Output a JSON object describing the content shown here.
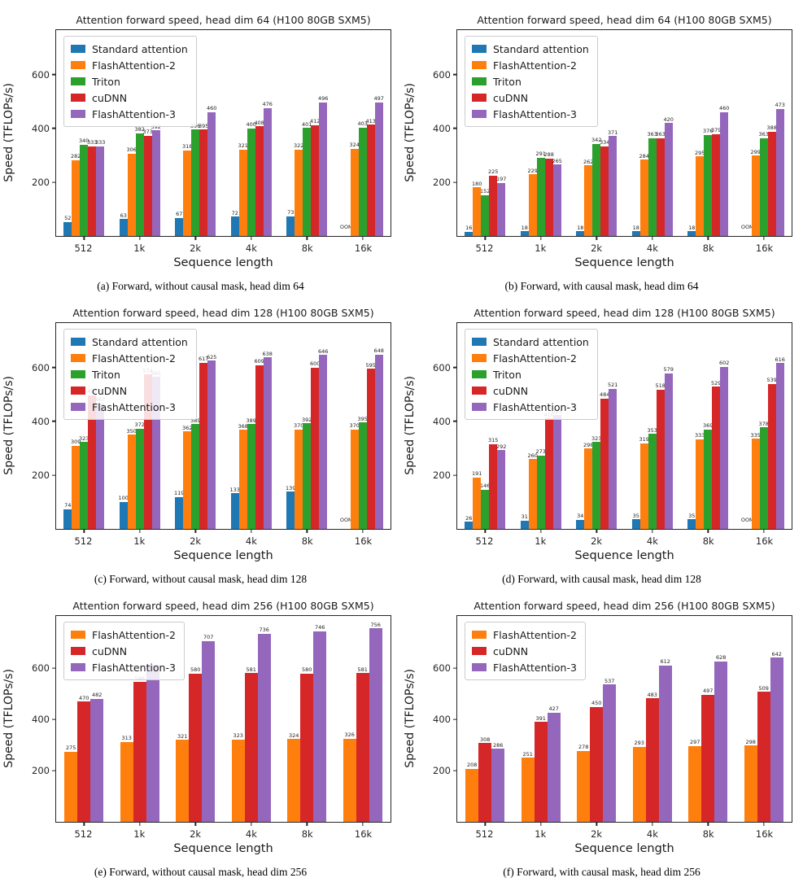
{
  "page": {
    "background": "#ffffff"
  },
  "palette": {
    "standard_attention": "#1f77b4",
    "flashattention2": "#ff7f0e",
    "triton": "#2ca02c",
    "cudnn": "#d62728",
    "flashattention3": "#9467bd"
  },
  "chart_data": [
    {
      "type": "bar",
      "title": "Attention forward speed, head dim 64 (H100 80GB SXM5)",
      "caption": "(a) Forward, without causal mask, head dim 64",
      "xlabel": "Sequence length",
      "ylabel": "Speed (TFLOPs/s)",
      "categories": [
        "512",
        "1k",
        "2k",
        "4k",
        "8k",
        "16k"
      ],
      "yticks": [
        200,
        400,
        600
      ],
      "ylim": [
        0,
        765
      ],
      "grid": false,
      "legend_position": "upper left",
      "series": [
        {
          "name": "Standard attention",
          "color": "#1f77b4",
          "values": [
            52,
            63,
            67,
            72,
            73,
            null
          ],
          "labels": [
            "52",
            "63",
            "67",
            "72",
            "73",
            "OOM"
          ]
        },
        {
          "name": "FlashAttention-2",
          "color": "#ff7f0e",
          "values": [
            282,
            306,
            318,
            321,
            322,
            324
          ],
          "labels": [
            "282",
            "306",
            "318",
            "321",
            "322",
            "324"
          ]
        },
        {
          "name": "Triton",
          "color": "#2ca02c",
          "values": [
            340,
            382,
            396,
            400,
            401,
            403
          ],
          "labels": [
            "340",
            "382",
            "396",
            "400",
            "401",
            "403"
          ]
        },
        {
          "name": "cuDNN",
          "color": "#d62728",
          "values": [
            333,
            373,
            395,
            408,
            412,
            413
          ],
          "labels": [
            "333",
            "373",
            "395",
            "408",
            "412",
            "413"
          ]
        },
        {
          "name": "FlashAttention-3",
          "color": "#9467bd",
          "values": [
            333,
            392,
            460,
            476,
            496,
            497
          ],
          "labels": [
            "333",
            "392",
            "460",
            "476",
            "496",
            "497"
          ]
        }
      ]
    },
    {
      "type": "bar",
      "title": "Attention forward speed, head dim 64 (H100 80GB SXM5)",
      "caption": "(b) Forward, with causal mask, head dim 64",
      "xlabel": "Sequence length",
      "ylabel": "Speed (TFLOPs/s)",
      "categories": [
        "512",
        "1k",
        "2k",
        "4k",
        "8k",
        "16k"
      ],
      "yticks": [
        200,
        400,
        600
      ],
      "ylim": [
        0,
        765
      ],
      "grid": false,
      "legend_position": "upper left",
      "series": [
        {
          "name": "Standard attention",
          "color": "#1f77b4",
          "values": [
            16,
            18,
            18,
            18,
            18,
            null
          ],
          "labels": [
            "16",
            "18",
            "18",
            "18",
            "18",
            "OOM"
          ]
        },
        {
          "name": "FlashAttention-2",
          "color": "#ff7f0e",
          "values": [
            180,
            229,
            262,
            284,
            295,
            299
          ],
          "labels": [
            "180",
            "229",
            "262",
            "284",
            "295",
            "299"
          ]
        },
        {
          "name": "Triton",
          "color": "#2ca02c",
          "values": [
            152,
            291,
            342,
            363,
            376,
            363
          ],
          "labels": [
            "152",
            "291",
            "342",
            "363",
            "376",
            "363"
          ]
        },
        {
          "name": "cuDNN",
          "color": "#d62728",
          "values": [
            225,
            288,
            334,
            363,
            379,
            388
          ],
          "labels": [
            "225",
            "288",
            "334",
            "363",
            "379",
            "388"
          ]
        },
        {
          "name": "FlashAttention-3",
          "color": "#9467bd",
          "values": [
            197,
            265,
            371,
            420,
            460,
            473
          ],
          "labels": [
            "197",
            "265",
            "371",
            "420",
            "460",
            "473"
          ]
        }
      ]
    },
    {
      "type": "bar",
      "title": "Attention forward speed, head dim 128 (H100 80GB SXM5)",
      "caption": "(c) Forward, without causal mask, head dim 128",
      "xlabel": "Sequence length",
      "ylabel": "Speed (TFLOPs/s)",
      "categories": [
        "512",
        "1k",
        "2k",
        "4k",
        "8k",
        "16k"
      ],
      "yticks": [
        200,
        400,
        600
      ],
      "ylim": [
        0,
        765
      ],
      "grid": false,
      "legend_position": "upper left",
      "series": [
        {
          "name": "Standard attention",
          "color": "#1f77b4",
          "values": [
            74,
            100,
            119,
            133,
            139,
            null
          ],
          "labels": [
            "74",
            "100",
            "119",
            "133",
            "139",
            "OOM"
          ]
        },
        {
          "name": "FlashAttention-2",
          "color": "#ff7f0e",
          "values": [
            309,
            350,
            362,
            368,
            370,
            370
          ],
          "labels": [
            "309",
            "350",
            "362",
            "368",
            "370",
            "370"
          ]
        },
        {
          "name": "Triton",
          "color": "#2ca02c",
          "values": [
            323,
            372,
            389,
            389,
            392,
            395
          ],
          "labels": [
            "323",
            "372",
            "389",
            "389",
            "392",
            "395"
          ]
        },
        {
          "name": "cuDNN",
          "color": "#d62728",
          "values": [
            497,
            574,
            617,
            609,
            600,
            595
          ],
          "labels": [
            "497",
            "574",
            "617",
            "609",
            "600",
            "595"
          ]
        },
        {
          "name": "FlashAttention-3",
          "color": "#9467bd",
          "values": [
            467,
            565,
            625,
            638,
            646,
            648
          ],
          "labels": [
            "467",
            "565",
            "625",
            "638",
            "646",
            "648"
          ]
        }
      ]
    },
    {
      "type": "bar",
      "title": "Attention forward speed, head dim 128 (H100 80GB SXM5)",
      "caption": "(d) Forward, with causal mask, head dim 128",
      "xlabel": "Sequence length",
      "ylabel": "Speed (TFLOPs/s)",
      "categories": [
        "512",
        "1k",
        "2k",
        "4k",
        "8k",
        "16k"
      ],
      "yticks": [
        200,
        400,
        600
      ],
      "ylim": [
        0,
        765
      ],
      "grid": false,
      "legend_position": "upper left",
      "series": [
        {
          "name": "Standard attention",
          "color": "#1f77b4",
          "values": [
            26,
            31,
            34,
            35,
            35,
            null
          ],
          "labels": [
            "26",
            "31",
            "34",
            "35",
            "35",
            "OOM"
          ]
        },
        {
          "name": "FlashAttention-2",
          "color": "#ff7f0e",
          "values": [
            191,
            260,
            298,
            319,
            333,
            335
          ],
          "labels": [
            "191",
            "260",
            "298",
            "319",
            "333",
            "335"
          ]
        },
        {
          "name": "Triton",
          "color": "#2ca02c",
          "values": [
            146,
            273,
            323,
            353,
            369,
            378
          ],
          "labels": [
            "146",
            "273",
            "323",
            "353",
            "369",
            "378"
          ]
        },
        {
          "name": "cuDNN",
          "color": "#d62728",
          "values": [
            315,
            410,
            484,
            518,
            529,
            539
          ],
          "labels": [
            "315",
            "410",
            "484",
            "518",
            "529",
            "539"
          ]
        },
        {
          "name": "FlashAttention-3",
          "color": "#9467bd",
          "values": [
            292,
            423,
            521,
            579,
            602,
            616
          ],
          "labels": [
            "292",
            "423",
            "521",
            "579",
            "602",
            "616"
          ]
        }
      ]
    },
    {
      "type": "bar",
      "title": "Attention forward speed, head dim 256 (H100 80GB SXM5)",
      "caption": "(e) Forward, without causal mask, head dim 256",
      "xlabel": "Sequence length",
      "ylabel": "Speed (TFLOPs/s)",
      "categories": [
        "512",
        "1k",
        "2k",
        "4k",
        "8k",
        "16k"
      ],
      "yticks": [
        200,
        400,
        600
      ],
      "ylim": [
        0,
        805
      ],
      "grid": false,
      "legend_position": "upper left",
      "series": [
        {
          "name": "FlashAttention-2",
          "color": "#ff7f0e",
          "values": [
            275,
            313,
            321,
            323,
            324,
            326
          ],
          "labels": [
            "275",
            "313",
            "321",
            "323",
            "324",
            "326"
          ]
        },
        {
          "name": "cuDNN",
          "color": "#d62728",
          "values": [
            470,
            546,
            580,
            581,
            580,
            581
          ],
          "labels": [
            "470",
            "546",
            "580",
            "581",
            "580",
            "581"
          ]
        },
        {
          "name": "FlashAttention-3",
          "color": "#9467bd",
          "values": [
            482,
            613,
            707,
            736,
            746,
            756
          ],
          "labels": [
            "482",
            "",
            "707",
            "736",
            "746",
            "756"
          ]
        }
      ]
    },
    {
      "type": "bar",
      "title": "Attention forward speed, head dim 256 (H100 80GB SXM5)",
      "caption": "(f) Forward, with causal mask, head dim 256",
      "xlabel": "Sequence length",
      "ylabel": "Speed (TFLOPs/s)",
      "categories": [
        "512",
        "1k",
        "2k",
        "4k",
        "8k",
        "16k"
      ],
      "yticks": [
        200,
        400,
        600
      ],
      "ylim": [
        0,
        805
      ],
      "grid": false,
      "legend_position": "upper left",
      "series": [
        {
          "name": "FlashAttention-2",
          "color": "#ff7f0e",
          "values": [
            208,
            251,
            278,
            293,
            297,
            298
          ],
          "labels": [
            "208",
            "251",
            "278",
            "293",
            "297",
            "298"
          ]
        },
        {
          "name": "cuDNN",
          "color": "#d62728",
          "values": [
            308,
            391,
            450,
            483,
            497,
            509
          ],
          "labels": [
            "308",
            "391",
            "450",
            "483",
            "497",
            "509"
          ]
        },
        {
          "name": "FlashAttention-3",
          "color": "#9467bd",
          "values": [
            286,
            427,
            537,
            612,
            628,
            642
          ],
          "labels": [
            "286",
            "427",
            "537",
            "612",
            "628",
            "642"
          ]
        }
      ]
    }
  ]
}
